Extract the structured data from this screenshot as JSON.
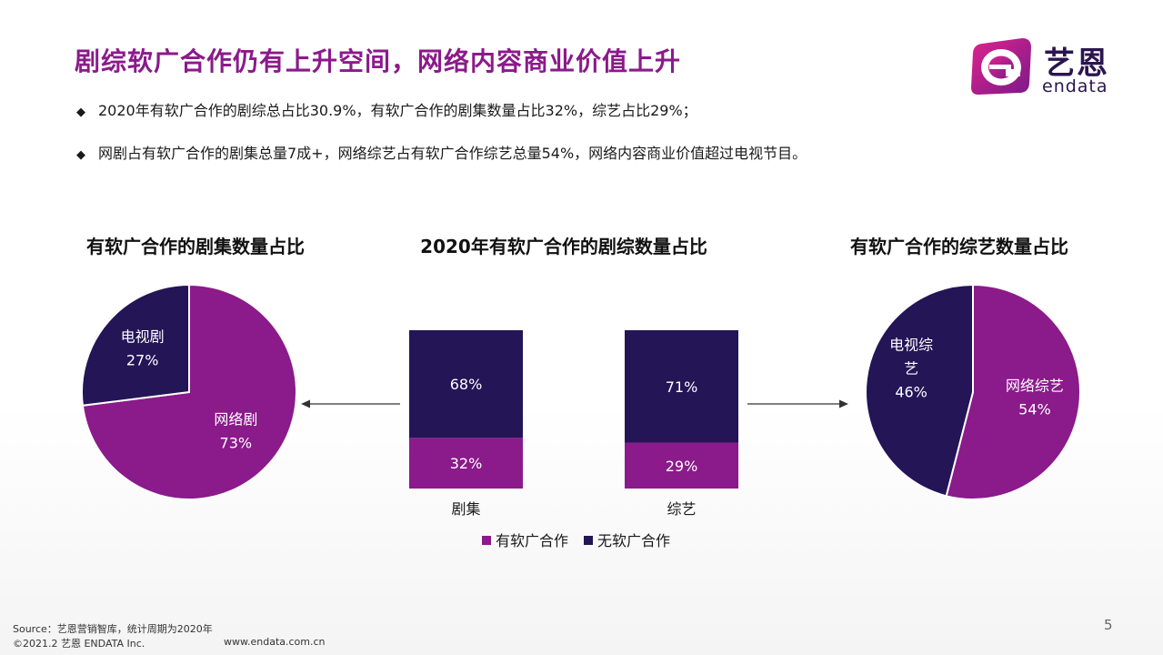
{
  "title": "剧综软广合作仍有上升空间，网络内容商业价值上升",
  "logo": {
    "cn": "艺恩",
    "en": "endata"
  },
  "bullets": [
    "2020年有软广合作的剧综总占比30.9%，有软广合作的剧集数量占比32%，综艺占比29%；",
    "网剧占有软广合作的剧集总量7成+，网络综艺占有软广合作综艺总量54%，网络内容商业价值超过电视节目。"
  ],
  "bullet_marker": "◆",
  "colors": {
    "purple": "#8b1a8b",
    "navy": "#231556",
    "arrow": "#333333"
  },
  "chart_data": [
    {
      "type": "pie",
      "title": "有软广合作的剧集数量占比",
      "slices": [
        {
          "name": "网络剧",
          "value": 73,
          "label": "73%",
          "color": "#8b1a8b"
        },
        {
          "name": "电视剧",
          "value": 27,
          "label": "27%",
          "color": "#231556"
        }
      ]
    },
    {
      "type": "bar",
      "stacked": true,
      "percent": true,
      "title": "2020年有软广合作的剧综数量占比",
      "categories": [
        "剧集",
        "综艺"
      ],
      "series": [
        {
          "name": "有软广合作",
          "values": [
            32,
            29
          ],
          "labels": [
            "32%",
            "29%"
          ],
          "color": "#8b1a8b"
        },
        {
          "name": "无软广合作",
          "values": [
            68,
            71
          ],
          "labels": [
            "68%",
            "71%"
          ],
          "color": "#231556"
        }
      ],
      "ylim": [
        0,
        100
      ],
      "legend": "bottom"
    },
    {
      "type": "pie",
      "title": "有软广合作的综艺数量占比",
      "slices": [
        {
          "name": "网络综艺",
          "value": 54,
          "label": "54%",
          "color": "#8b1a8b"
        },
        {
          "name": "电视综艺",
          "value": 46,
          "label": "46%",
          "color": "#231556"
        }
      ]
    }
  ],
  "footer": {
    "source": "Source：艺恩营销智库，统计周期为2020年",
    "copyright": "©2021.2 艺恩 ENDATA Inc.",
    "url": "www.endata.com.cn",
    "page": "5"
  }
}
